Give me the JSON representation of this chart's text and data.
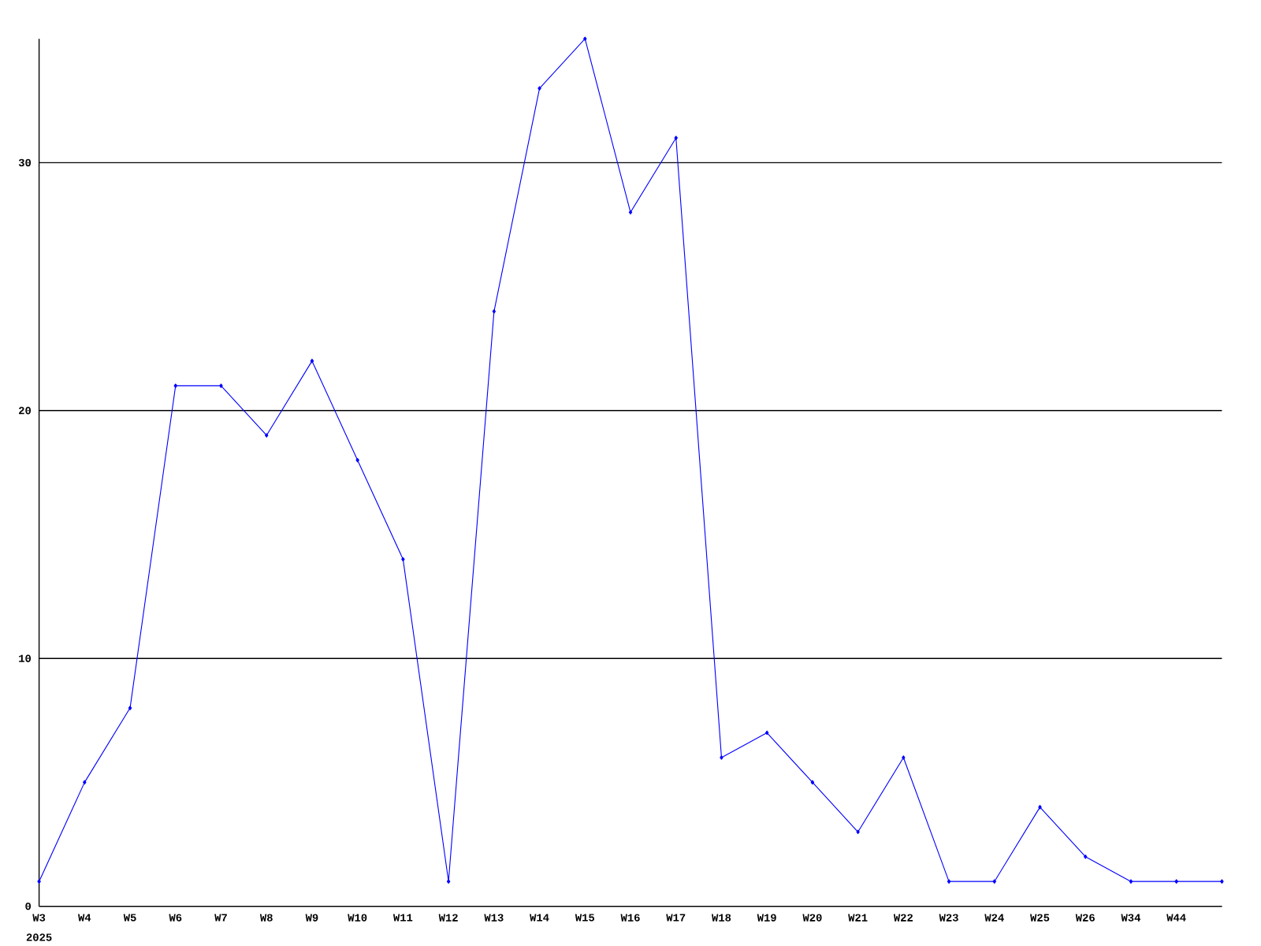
{
  "chart_data": {
    "type": "line",
    "categories": [
      "W3",
      "W4",
      "W5",
      "W6",
      "W7",
      "W8",
      "W9",
      "W10",
      "W11",
      "W12",
      "W13",
      "W14",
      "W15",
      "W16",
      "W17",
      "W18",
      "W19",
      "W20",
      "W21",
      "W22",
      "W23",
      "W24",
      "W25",
      "W26",
      "W34",
      "W44",
      null
    ],
    "values": [
      1,
      5,
      8,
      21,
      21,
      19,
      22,
      18,
      14,
      1,
      24,
      33,
      35,
      28,
      31,
      6,
      7,
      5,
      3,
      6,
      1,
      1,
      4,
      2,
      1,
      1,
      1
    ],
    "color": "#0000ff",
    "marker": "diamond",
    "line_style": "solid",
    "ylim": [
      0,
      35
    ],
    "yticks": [
      0,
      10,
      20,
      30
    ],
    "grid": "y",
    "annotations": [
      "2025"
    ]
  }
}
